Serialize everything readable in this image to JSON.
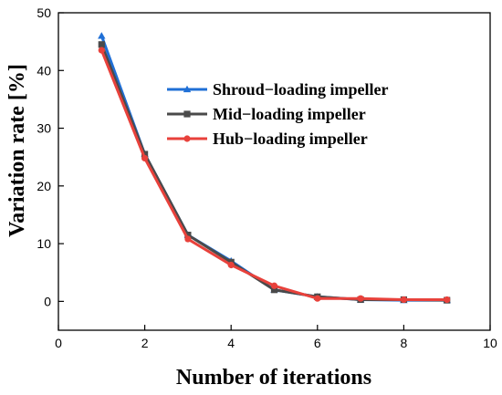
{
  "chart_data": {
    "type": "line",
    "title": "",
    "xlabel": "Number of iterations",
    "ylabel": "Variation rate [%]",
    "xlim": [
      0,
      10
    ],
    "ylim": [
      -5,
      50
    ],
    "xticks": [
      0,
      2,
      4,
      6,
      8,
      10
    ],
    "yticks": [
      0,
      10,
      20,
      30,
      40,
      50
    ],
    "grid": false,
    "legend_position": "top-right",
    "series": [
      {
        "name": "Shroud−loading impeller",
        "color": "#1f6fd6",
        "marker": "triangle",
        "x": [
          1,
          2,
          3,
          4,
          5,
          6,
          7,
          8,
          9
        ],
        "y": [
          46.0,
          25.5,
          11.5,
          7.0,
          2.0,
          0.8,
          0.3,
          0.2,
          0.2
        ]
      },
      {
        "name": "Mid−loading impeller",
        "color": "#4a4a4a",
        "marker": "square",
        "x": [
          1,
          2,
          3,
          4,
          5,
          6,
          7,
          8,
          9
        ],
        "y": [
          44.5,
          25.5,
          11.5,
          6.8,
          2.0,
          0.8,
          0.3,
          0.3,
          0.2
        ]
      },
      {
        "name": "Hub−loading impeller",
        "color": "#e8413b",
        "marker": "circle",
        "x": [
          1,
          2,
          3,
          4,
          5,
          6,
          7,
          8,
          9
        ],
        "y": [
          43.5,
          24.8,
          10.8,
          6.3,
          2.7,
          0.5,
          0.5,
          0.3,
          0.3
        ]
      }
    ]
  }
}
